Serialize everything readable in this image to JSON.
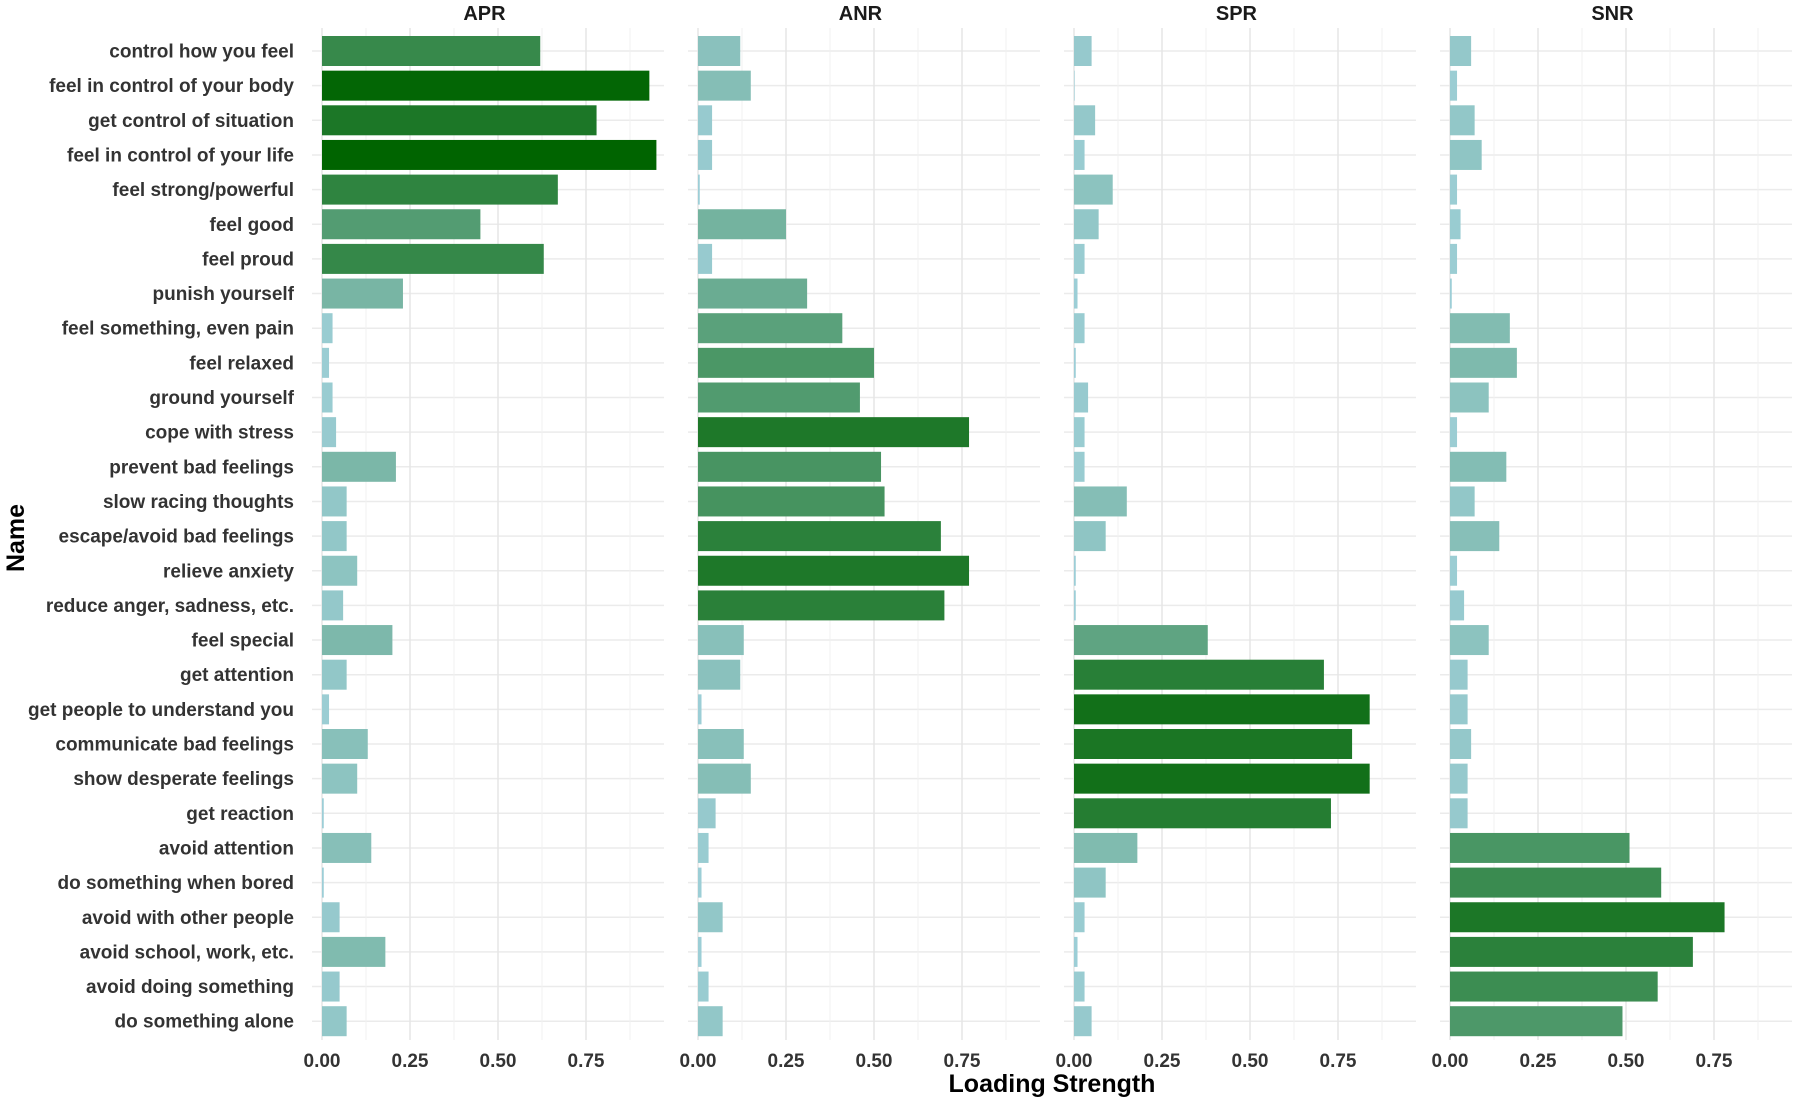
{
  "chart_data": {
    "type": "bar",
    "orientation": "horizontal",
    "xlabel": "Loading Strength",
    "ylabel": "Name",
    "xlim": [
      0,
      0.95
    ],
    "xticks": [
      "0.00",
      "0.25",
      "0.50",
      "0.75"
    ],
    "xtick_values": [
      0,
      0.25,
      0.5,
      0.75
    ],
    "categories": [
      "control how you feel",
      "feel in control of your body",
      "get control of situation",
      "feel in control of your life",
      "feel strong/powerful",
      "feel good",
      "feel proud",
      "punish yourself",
      "feel something, even pain",
      "feel relaxed",
      "ground yourself",
      "cope with stress",
      "prevent bad feelings",
      "slow racing thoughts",
      "escape/avoid bad feelings",
      "relieve anxiety",
      "reduce anger, sadness, etc.",
      "feel special",
      "get attention",
      "get people to understand you",
      "communicate bad feelings",
      "show desperate feelings",
      "get reaction",
      "avoid attention",
      "do something when bored",
      "avoid with other people",
      "avoid school, work, etc.",
      "avoid doing something",
      "do something alone"
    ],
    "series": [
      {
        "name": "APR",
        "values": [
          0.62,
          0.93,
          0.78,
          0.95,
          0.67,
          0.45,
          0.63,
          0.23,
          0.03,
          0.02,
          0.03,
          0.04,
          0.21,
          0.07,
          0.07,
          0.1,
          0.06,
          0.2,
          0.07,
          0.02,
          0.13,
          0.1,
          0.005,
          0.14,
          0.005,
          0.05,
          0.18,
          0.05,
          0.07
        ]
      },
      {
        "name": "ANR",
        "values": [
          0.12,
          0.15,
          0.04,
          0.04,
          0.005,
          0.25,
          0.04,
          0.31,
          0.41,
          0.5,
          0.46,
          0.77,
          0.52,
          0.53,
          0.69,
          0.77,
          0.7,
          0.13,
          0.12,
          0.01,
          0.13,
          0.15,
          0.05,
          0.03,
          0.01,
          0.07,
          0.01,
          0.03,
          0.07
        ]
      },
      {
        "name": "SPR",
        "values": [
          0.05,
          0.0,
          0.06,
          0.03,
          0.11,
          0.07,
          0.03,
          0.01,
          0.03,
          0.005,
          0.04,
          0.03,
          0.03,
          0.15,
          0.09,
          0.005,
          0.005,
          0.38,
          0.71,
          0.84,
          0.79,
          0.84,
          0.73,
          0.18,
          0.09,
          0.03,
          0.01,
          0.03,
          0.05
        ]
      },
      {
        "name": "SNR",
        "values": [
          0.06,
          0.02,
          0.07,
          0.09,
          0.02,
          0.03,
          0.02,
          0.005,
          0.17,
          0.19,
          0.11,
          0.02,
          0.16,
          0.07,
          0.14,
          0.02,
          0.04,
          0.11,
          0.05,
          0.05,
          0.06,
          0.05,
          0.05,
          0.51,
          0.6,
          0.78,
          0.69,
          0.59,
          0.49
        ]
      }
    ],
    "color_scale": {
      "low": "#9ecfd8",
      "high": "#006400"
    },
    "grid": true,
    "legend": "none"
  }
}
